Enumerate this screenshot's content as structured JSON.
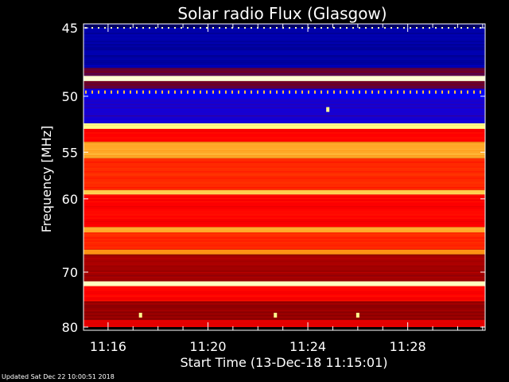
{
  "chart_data": {
    "type": "heatmap",
    "title": "Solar radio Flux (Glasgow)",
    "xlabel": "Start Time (13-Dec-18 11:15:01)",
    "ylabel": "Frequency [MHz]",
    "x_ticks": [
      "11:16",
      "11:20",
      "11:24",
      "11:28"
    ],
    "x_tick_minutes": [
      16,
      20,
      24,
      28
    ],
    "xlim_minutes": [
      15.0167,
      31.1
    ],
    "y_ticks": [
      45,
      50,
      55,
      60,
      70,
      80
    ],
    "ylim": [
      44.3,
      80
    ],
    "y_scale": "reciprocal",
    "colormap": [
      "#000050",
      "#0000ff",
      "#800000",
      "#ff0000",
      "#ff8000",
      "#ffff80",
      "#ffffff"
    ],
    "bands": [
      {
        "from": 44.3,
        "to": 45.0,
        "level": 0.02
      },
      {
        "from": 45.0,
        "to": 47.8,
        "level": 0.08
      },
      {
        "from": 47.8,
        "to": 48.4,
        "level": 0.3
      },
      {
        "from": 48.4,
        "to": 48.8,
        "level": 0.95
      },
      {
        "from": 48.8,
        "to": 49.4,
        "level": 0.3
      },
      {
        "from": 49.4,
        "to": 50.2,
        "level": 0.16
      },
      {
        "from": 50.2,
        "to": 52.3,
        "level": 0.2
      },
      {
        "from": 52.3,
        "to": 52.8,
        "level": 0.85
      },
      {
        "from": 52.8,
        "to": 54.0,
        "level": 0.5
      },
      {
        "from": 54.0,
        "to": 55.6,
        "level": 0.72
      },
      {
        "from": 55.6,
        "to": 59.0,
        "level": 0.55
      },
      {
        "from": 59.0,
        "to": 59.5,
        "level": 0.78
      },
      {
        "from": 59.5,
        "to": 63.5,
        "level": 0.5
      },
      {
        "from": 63.5,
        "to": 64.2,
        "level": 0.72
      },
      {
        "from": 64.2,
        "to": 66.6,
        "level": 0.55
      },
      {
        "from": 66.6,
        "to": 67.3,
        "level": 0.7
      },
      {
        "from": 67.3,
        "to": 71.5,
        "level": 0.38
      },
      {
        "from": 71.5,
        "to": 72.3,
        "level": 0.93
      },
      {
        "from": 72.3,
        "to": 75.0,
        "level": 0.5
      },
      {
        "from": 75.0,
        "to": 78.5,
        "level": 0.36
      },
      {
        "from": 78.5,
        "to": 80.0,
        "level": 0.46
      }
    ],
    "spikes": [
      {
        "minute": 17.3,
        "freq": 77.6
      },
      {
        "minute": 22.7,
        "freq": 77.6
      },
      {
        "minute": 26.0,
        "freq": 77.6
      },
      {
        "minute": 24.8,
        "freq": 51.1
      }
    ]
  },
  "footer": {
    "updated": "Updated Sat Dec 22 10:00:51 2018"
  }
}
